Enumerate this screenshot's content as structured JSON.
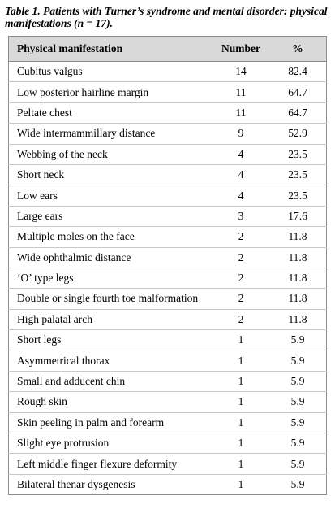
{
  "title": "Table 1. Patients with Turner’s syndrome and mental disorder: physical manifestations (n = 17).",
  "table": {
    "header": [
      "Physical manifestation",
      "Number",
      "%"
    ],
    "rows": [
      [
        "Cubitus valgus",
        14,
        82.4
      ],
      [
        "Low posterior hairline margin",
        11,
        64.7
      ],
      [
        "Peltate chest",
        11,
        64.7
      ],
      [
        "Wide intermammillary distance",
        9,
        52.9
      ],
      [
        "Webbing of the neck",
        4,
        23.5
      ],
      [
        "Short neck",
        4,
        23.5
      ],
      [
        "Low ears",
        4,
        23.5
      ],
      [
        "Large ears",
        3,
        17.6
      ],
      [
        "Multiple moles on the face",
        2,
        11.8
      ],
      [
        "Wide ophthalmic distance",
        2,
        11.8
      ],
      [
        "‘O’ type legs",
        2,
        11.8
      ],
      [
        "Double or single fourth toe malformation",
        2,
        11.8
      ],
      [
        "High palatal arch",
        2,
        11.8
      ],
      [
        "Short legs",
        1,
        5.9
      ],
      [
        "Asymmetrical thorax",
        1,
        5.9
      ],
      [
        "Small and adducent chin",
        1,
        5.9
      ],
      [
        "Rough skin",
        1,
        5.9
      ],
      [
        "Skin peeling in palm and forearm",
        1,
        5.9
      ],
      [
        "Slight eye protrusion",
        1,
        5.9
      ],
      [
        "Left middle finger flexure deformity",
        1,
        5.9
      ],
      [
        "Bilateral thenar dysgenesis",
        1,
        5.9
      ]
    ]
  }
}
